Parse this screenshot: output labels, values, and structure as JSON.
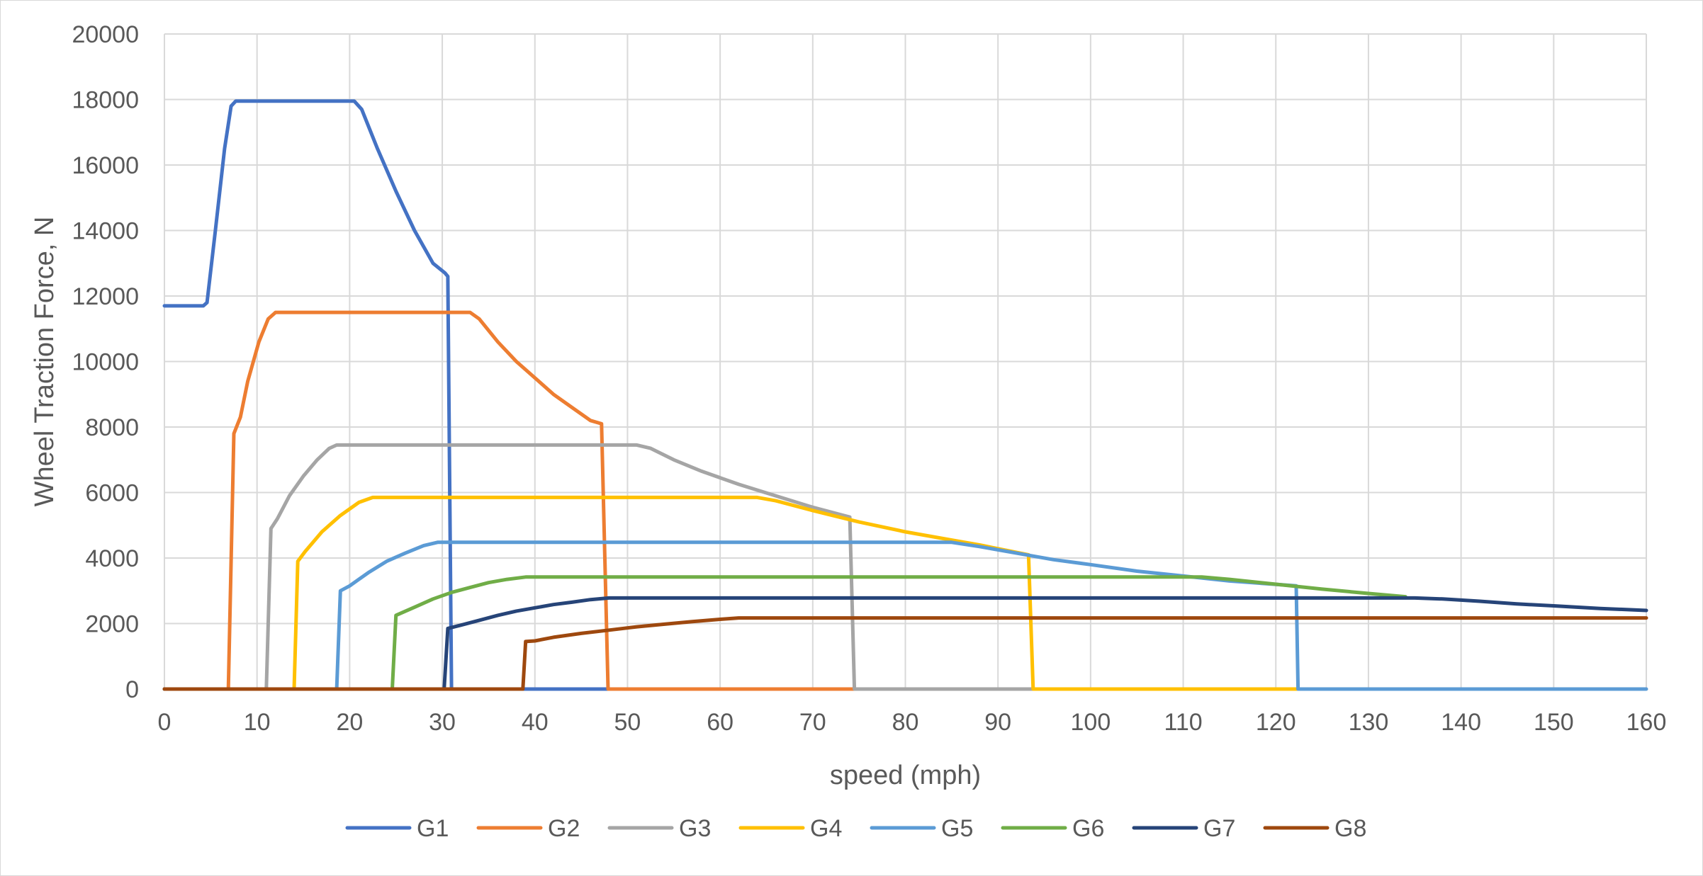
{
  "chart_data": {
    "type": "line",
    "title": "",
    "xlabel": "speed (mph)",
    "ylabel": "Wheel Traction Force, N",
    "xlim": [
      0,
      160
    ],
    "ylim": [
      0,
      20000
    ],
    "xticks": [
      0,
      10,
      20,
      30,
      40,
      50,
      60,
      70,
      80,
      90,
      100,
      110,
      120,
      130,
      140,
      150,
      160
    ],
    "yticks": [
      0,
      2000,
      4000,
      6000,
      8000,
      10000,
      12000,
      14000,
      16000,
      18000,
      20000
    ],
    "grid": true,
    "legend_position": "bottom",
    "series": [
      {
        "name": "G1",
        "color": "#4472C4",
        "points": [
          [
            0,
            11700
          ],
          [
            4.2,
            11700
          ],
          [
            4.6,
            11800
          ],
          [
            5.5,
            14000
          ],
          [
            6.5,
            16500
          ],
          [
            7.2,
            17800
          ],
          [
            7.7,
            17950
          ],
          [
            20.5,
            17950
          ],
          [
            21.3,
            17700
          ],
          [
            23,
            16500
          ],
          [
            25,
            15200
          ],
          [
            27,
            14000
          ],
          [
            29,
            13000
          ],
          [
            30.3,
            12700
          ],
          [
            30.6,
            12600
          ],
          [
            31,
            0
          ],
          [
            38.7,
            0
          ],
          [
            48,
            0
          ]
        ]
      },
      {
        "name": "G2",
        "color": "#ED7D31",
        "points": [
          [
            0,
            0
          ],
          [
            6.9,
            0
          ],
          [
            7.5,
            7800
          ],
          [
            8.2,
            8300
          ],
          [
            9,
            9400
          ],
          [
            10.2,
            10600
          ],
          [
            11.2,
            11300
          ],
          [
            12,
            11500
          ],
          [
            33,
            11500
          ],
          [
            34,
            11300
          ],
          [
            36,
            10600
          ],
          [
            38,
            10000
          ],
          [
            40,
            9500
          ],
          [
            42,
            9000
          ],
          [
            44,
            8600
          ],
          [
            46,
            8200
          ],
          [
            47.2,
            8100
          ],
          [
            47.9,
            0
          ],
          [
            74.5,
            0
          ]
        ]
      },
      {
        "name": "G3",
        "color": "#A5A5A5",
        "points": [
          [
            0,
            0
          ],
          [
            11,
            0
          ],
          [
            11.5,
            4900
          ],
          [
            12.2,
            5200
          ],
          [
            13.5,
            5900
          ],
          [
            15,
            6500
          ],
          [
            16.5,
            7000
          ],
          [
            17.8,
            7350
          ],
          [
            18.6,
            7450
          ],
          [
            51,
            7450
          ],
          [
            52.5,
            7350
          ],
          [
            55,
            7000
          ],
          [
            58,
            6650
          ],
          [
            62,
            6250
          ],
          [
            66,
            5900
          ],
          [
            70,
            5550
          ],
          [
            74,
            5250
          ],
          [
            74.5,
            0
          ],
          [
            94,
            0
          ]
        ]
      },
      {
        "name": "G4",
        "color": "#FFC000",
        "points": [
          [
            0,
            0
          ],
          [
            14,
            0
          ],
          [
            14.4,
            3900
          ],
          [
            15.2,
            4200
          ],
          [
            17,
            4800
          ],
          [
            19,
            5300
          ],
          [
            21,
            5700
          ],
          [
            22.5,
            5850
          ],
          [
            23.5,
            5850
          ],
          [
            64,
            5850
          ],
          [
            66,
            5750
          ],
          [
            70,
            5450
          ],
          [
            75,
            5100
          ],
          [
            80,
            4800
          ],
          [
            85,
            4550
          ],
          [
            88,
            4400
          ],
          [
            93.3,
            4100
          ],
          [
            93.8,
            0
          ],
          [
            122.3,
            0
          ]
        ]
      },
      {
        "name": "G5",
        "color": "#5B9BD5",
        "points": [
          [
            0,
            0
          ],
          [
            18.6,
            0
          ],
          [
            19,
            3000
          ],
          [
            20,
            3150
          ],
          [
            22,
            3550
          ],
          [
            24,
            3900
          ],
          [
            26,
            4150
          ],
          [
            28,
            4380
          ],
          [
            29.5,
            4480
          ],
          [
            85,
            4480
          ],
          [
            88,
            4350
          ],
          [
            92,
            4150
          ],
          [
            96,
            3950
          ],
          [
            100,
            3800
          ],
          [
            105,
            3600
          ],
          [
            110,
            3450
          ],
          [
            115,
            3300
          ],
          [
            122.2,
            3150
          ],
          [
            122.4,
            0
          ],
          [
            160,
            0
          ]
        ]
      },
      {
        "name": "G6",
        "color": "#70AD47",
        "points": [
          [
            0,
            0
          ],
          [
            24.6,
            0
          ],
          [
            25,
            2250
          ],
          [
            25.8,
            2350
          ],
          [
            27,
            2500
          ],
          [
            29,
            2750
          ],
          [
            31,
            2950
          ],
          [
            33,
            3100
          ],
          [
            35,
            3250
          ],
          [
            37,
            3350
          ],
          [
            39,
            3420
          ],
          [
            112,
            3420
          ],
          [
            115,
            3350
          ],
          [
            120,
            3200
          ],
          [
            125,
            3050
          ],
          [
            130,
            2920
          ],
          [
            134,
            2820
          ]
        ]
      },
      {
        "name": "G7",
        "color": "#264478",
        "points": [
          [
            0,
            0
          ],
          [
            30.2,
            0
          ],
          [
            30.6,
            1850
          ],
          [
            32,
            1950
          ],
          [
            34,
            2100
          ],
          [
            36,
            2250
          ],
          [
            38,
            2380
          ],
          [
            40,
            2480
          ],
          [
            42,
            2580
          ],
          [
            44,
            2650
          ],
          [
            46,
            2730
          ],
          [
            48,
            2780
          ],
          [
            135,
            2780
          ],
          [
            138,
            2750
          ],
          [
            142,
            2680
          ],
          [
            146,
            2600
          ],
          [
            150,
            2540
          ],
          [
            155,
            2460
          ],
          [
            160,
            2400
          ]
        ]
      },
      {
        "name": "G8",
        "color": "#9E480E",
        "points": [
          [
            0,
            0
          ],
          [
            38.7,
            0
          ],
          [
            39,
            1450
          ],
          [
            40,
            1470
          ],
          [
            42,
            1580
          ],
          [
            45,
            1700
          ],
          [
            48,
            1800
          ],
          [
            51,
            1900
          ],
          [
            54,
            1980
          ],
          [
            57,
            2060
          ],
          [
            60,
            2130
          ],
          [
            62,
            2170
          ],
          [
            160,
            2170
          ]
        ]
      }
    ]
  }
}
